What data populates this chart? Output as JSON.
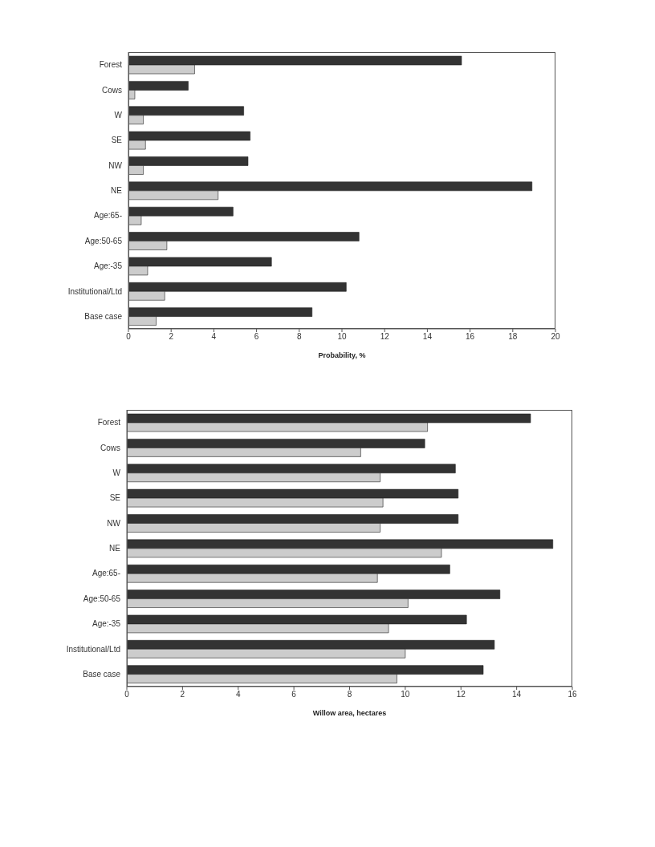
{
  "chart_data": [
    {
      "type": "bar",
      "orientation": "horizontal",
      "xlabel": "Probability, %",
      "categories": [
        "Forest",
        "Cows",
        "W",
        "SE",
        "NW",
        "NE",
        "Age:65-",
        "Age:50-65",
        "Age:-35",
        "Institutional/Ltd",
        "Base case"
      ],
      "series": [
        {
          "color": "#333333",
          "values": [
            15.6,
            2.8,
            5.4,
            5.7,
            5.6,
            18.9,
            4.9,
            10.8,
            6.7,
            10.2,
            8.6
          ]
        },
        {
          "color": "#cccccc",
          "values": [
            3.1,
            0.3,
            0.7,
            0.8,
            0.7,
            4.2,
            0.6,
            1.8,
            0.9,
            1.7,
            1.3
          ]
        }
      ],
      "xlim": [
        0,
        20
      ],
      "xticks": [
        0,
        2,
        4,
        6,
        8,
        10,
        12,
        14,
        16,
        18,
        20
      ],
      "grid": false,
      "legend": false
    },
    {
      "type": "bar",
      "orientation": "horizontal",
      "xlabel": "Willow area, hectares",
      "categories": [
        "Forest",
        "Cows",
        "W",
        "SE",
        "NW",
        "NE",
        "Age:65-",
        "Age:50-65",
        "Age:-35",
        "Institutional/Ltd",
        "Base case"
      ],
      "series": [
        {
          "color": "#333333",
          "values": [
            14.5,
            10.7,
            11.8,
            11.9,
            11.9,
            15.3,
            11.6,
            13.4,
            12.2,
            13.2,
            12.8
          ]
        },
        {
          "color": "#cccccc",
          "values": [
            10.8,
            8.4,
            9.1,
            9.2,
            9.1,
            11.3,
            9.0,
            10.1,
            9.4,
            10.0,
            9.7
          ]
        }
      ],
      "xlim": [
        0,
        16
      ],
      "xticks": [
        0,
        2,
        4,
        6,
        8,
        10,
        12,
        14,
        16
      ],
      "grid": false,
      "legend": false
    }
  ]
}
